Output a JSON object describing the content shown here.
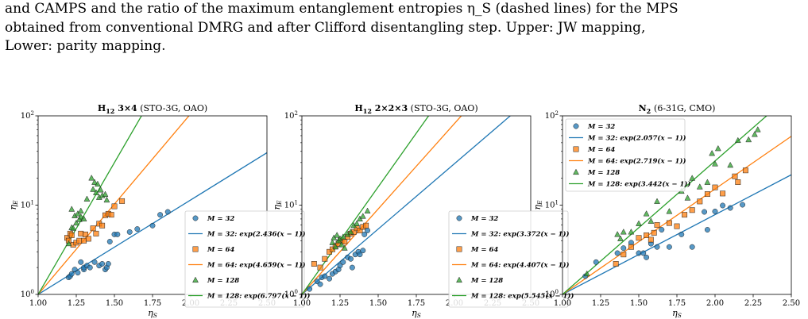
{
  "caption": {
    "line1": "and CAMPS and the ratio of the maximum entanglement entropies η_S (dashed lines) for the MPS",
    "line2": "obtained from conventional DMRG and after Clifford disentangling step. Upper: JW mapping,",
    "line3": "Lower: parity mapping."
  },
  "chart_data": [
    {
      "type": "scatter",
      "title": "H12 3×4 (STO-3G, OAO)",
      "xlabel": "η_S",
      "ylabel": "η_E",
      "xlim": [
        1.0,
        2.5
      ],
      "ylim": [
        1,
        100
      ],
      "yscale": "log",
      "xticks": [
        "1.00",
        "1.25",
        "1.50",
        "1.75",
        "2.00",
        "2.25",
        "2.50"
      ],
      "yticks": [
        "10^0",
        "10^1",
        "10^2"
      ],
      "legend_position": "lower-right",
      "legend": [
        "M = 32",
        "M = 32: exp(2.436(x − 1))",
        "M = 64",
        "M = 64: exp(4.659(x − 1))",
        "M = 128",
        "M = 128: exp(6.797(x − 1))"
      ],
      "series": [
        {
          "name": "M = 32",
          "marker": "circle",
          "color": "#1f77b4",
          "fit_k": 2.436,
          "points": [
            [
              1.2,
              1.55
            ],
            [
              1.21,
              1.6
            ],
            [
              1.22,
              1.7
            ],
            [
              1.24,
              1.9
            ],
            [
              1.26,
              1.75
            ],
            [
              1.28,
              2.3
            ],
            [
              1.3,
              1.9
            ],
            [
              1.3,
              2.0
            ],
            [
              1.32,
              2.1
            ],
            [
              1.34,
              2.0
            ],
            [
              1.37,
              2.3
            ],
            [
              1.4,
              2.1
            ],
            [
              1.42,
              2.2
            ],
            [
              1.44,
              1.9
            ],
            [
              1.45,
              2.0
            ],
            [
              1.46,
              2.2
            ],
            [
              1.47,
              3.9
            ],
            [
              1.5,
              4.7
            ],
            [
              1.52,
              4.7
            ],
            [
              1.6,
              5.0
            ],
            [
              1.65,
              5.4
            ],
            [
              1.75,
              5.9
            ],
            [
              1.8,
              7.8
            ],
            [
              1.85,
              8.4
            ]
          ]
        },
        {
          "name": "M = 64",
          "marker": "square",
          "color": "#ff7f0e",
          "fit_k": 4.659,
          "points": [
            [
              1.19,
              4.3
            ],
            [
              1.2,
              4.0
            ],
            [
              1.21,
              4.8
            ],
            [
              1.22,
              4.6
            ],
            [
              1.23,
              3.6
            ],
            [
              1.25,
              3.8
            ],
            [
              1.27,
              4.0
            ],
            [
              1.28,
              4.8
            ],
            [
              1.3,
              4.0
            ],
            [
              1.31,
              4.7
            ],
            [
              1.33,
              4.2
            ],
            [
              1.36,
              5.5
            ],
            [
              1.38,
              4.8
            ],
            [
              1.4,
              6.2
            ],
            [
              1.42,
              5.9
            ],
            [
              1.44,
              7.7
            ],
            [
              1.46,
              8.0
            ],
            [
              1.48,
              7.8
            ],
            [
              1.5,
              9.7
            ],
            [
              1.55,
              11.1
            ]
          ]
        },
        {
          "name": "M = 128",
          "marker": "triangle",
          "color": "#2ca02c",
          "fit_k": 6.797,
          "points": [
            [
              1.2,
              3.7
            ],
            [
              1.22,
              5.6
            ],
            [
              1.22,
              9.0
            ],
            [
              1.23,
              5.5
            ],
            [
              1.24,
              7.6
            ],
            [
              1.25,
              6.3
            ],
            [
              1.26,
              8.0
            ],
            [
              1.27,
              6.9
            ],
            [
              1.28,
              7.4
            ],
            [
              1.28,
              8.6
            ],
            [
              1.3,
              7.0
            ],
            [
              1.32,
              11.7
            ],
            [
              1.35,
              20.1
            ],
            [
              1.36,
              15.0
            ],
            [
              1.37,
              18.0
            ],
            [
              1.38,
              13.8
            ],
            [
              1.39,
              17.2
            ],
            [
              1.4,
              12.2
            ],
            [
              1.41,
              14.8
            ],
            [
              1.42,
              12.8
            ],
            [
              1.44,
              13.2
            ],
            [
              1.45,
              11.4
            ]
          ]
        }
      ]
    },
    {
      "type": "scatter",
      "title": "H12 2×2×3 (STO-3G, OAO)",
      "xlabel": "η_S",
      "ylabel": "η_E",
      "xlim": [
        1.0,
        2.5
      ],
      "ylim": [
        1,
        100
      ],
      "yscale": "log",
      "xticks": [
        "1.00",
        "1.25",
        "1.50",
        "1.75",
        "2.00",
        "2.25",
        "2.50"
      ],
      "yticks": [
        "10^0",
        "10^1",
        "10^2"
      ],
      "legend_position": "lower-right",
      "legend": [
        "M = 32",
        "M = 32: exp(3.372(x − 1))",
        "M = 64",
        "M = 64: exp(4.407(x − 1))",
        "M = 128",
        "M = 128: exp(5.545(x − 1))"
      ],
      "series": [
        {
          "name": "M = 32",
          "marker": "circle",
          "color": "#1f77b4",
          "fit_k": 3.372,
          "points": [
            [
              1.05,
              1.15
            ],
            [
              1.1,
              1.4
            ],
            [
              1.12,
              1.3
            ],
            [
              1.13,
              1.55
            ],
            [
              1.15,
              1.6
            ],
            [
              1.18,
              1.5
            ],
            [
              1.2,
              1.7
            ],
            [
              1.22,
              1.8
            ],
            [
              1.24,
              1.9
            ],
            [
              1.25,
              2.1
            ],
            [
              1.27,
              2.3
            ],
            [
              1.3,
              2.6
            ],
            [
              1.32,
              2.5
            ],
            [
              1.33,
              2.0
            ],
            [
              1.35,
              2.8
            ],
            [
              1.37,
              3.0
            ],
            [
              1.38,
              2.8
            ],
            [
              1.4,
              3.1
            ],
            [
              1.41,
              4.7
            ],
            [
              1.43,
              5.2
            ]
          ]
        },
        {
          "name": "M = 64",
          "marker": "square",
          "color": "#ff7f0e",
          "fit_k": 4.407,
          "points": [
            [
              1.08,
              2.2
            ],
            [
              1.12,
              2.0
            ],
            [
              1.15,
              2.5
            ],
            [
              1.18,
              3.0
            ],
            [
              1.2,
              3.2
            ],
            [
              1.22,
              3.5
            ],
            [
              1.24,
              3.7
            ],
            [
              1.26,
              4.0
            ],
            [
              1.28,
              3.9
            ],
            [
              1.3,
              4.4
            ],
            [
              1.32,
              4.8
            ],
            [
              1.34,
              5.0
            ],
            [
              1.36,
              5.5
            ],
            [
              1.38,
              5.2
            ],
            [
              1.4,
              5.7
            ],
            [
              1.42,
              5.9
            ]
          ]
        },
        {
          "name": "M = 128",
          "marker": "triangle",
          "color": "#2ca02c",
          "fit_k": 5.545,
          "points": [
            [
              1.2,
              3.8
            ],
            [
              1.21,
              4.3
            ],
            [
              1.22,
              3.4
            ],
            [
              1.23,
              4.6
            ],
            [
              1.24,
              4.0
            ],
            [
              1.25,
              4.2
            ],
            [
              1.26,
              3.6
            ],
            [
              1.27,
              4.4
            ],
            [
              1.28,
              3.3
            ],
            [
              1.3,
              4.7
            ],
            [
              1.32,
              5.0
            ],
            [
              1.34,
              5.9
            ],
            [
              1.36,
              6.2
            ],
            [
              1.38,
              7.0
            ],
            [
              1.4,
              7.5
            ],
            [
              1.43,
              8.6
            ]
          ]
        }
      ]
    },
    {
      "type": "scatter",
      "title": "N2 (6-31G, CMO)",
      "xlabel": "η_S",
      "ylabel": "η_E",
      "xlim": [
        1.0,
        2.5
      ],
      "ylim": [
        1,
        100
      ],
      "yscale": "log",
      "xticks": [
        "1.00",
        "1.25",
        "1.50",
        "1.75",
        "2.00",
        "2.25",
        "2.50"
      ],
      "yticks": [
        "10^0",
        "10^1",
        "10^2"
      ],
      "legend_position": "top-left",
      "legend": [
        "M = 32",
        "M = 32: exp(2.057(x − 1))",
        "M = 64",
        "M = 64: exp(2.719(x − 1))",
        "M = 128",
        "M = 128: exp(3.442(x − 1))"
      ],
      "series": [
        {
          "name": "M = 32",
          "marker": "circle",
          "color": "#1f77b4",
          "fit_k": 2.057,
          "points": [
            [
              1.15,
              1.6
            ],
            [
              1.22,
              2.3
            ],
            [
              1.36,
              2.9
            ],
            [
              1.4,
              3.3
            ],
            [
              1.45,
              3.8
            ],
            [
              1.5,
              2.9
            ],
            [
              1.53,
              2.9
            ],
            [
              1.55,
              2.6
            ],
            [
              1.58,
              3.7
            ],
            [
              1.62,
              3.4
            ],
            [
              1.65,
              5.3
            ],
            [
              1.7,
              3.4
            ],
            [
              1.78,
              4.7
            ],
            [
              1.85,
              3.4
            ],
            [
              1.93,
              8.4
            ],
            [
              1.95,
              5.3
            ],
            [
              2.0,
              8.5
            ],
            [
              2.05,
              9.9
            ],
            [
              2.1,
              9.3
            ],
            [
              2.18,
              10.1
            ]
          ]
        },
        {
          "name": "M = 64",
          "marker": "square",
          "color": "#ff7f0e",
          "fit_k": 2.719,
          "points": [
            [
              1.35,
              2.2
            ],
            [
              1.4,
              2.8
            ],
            [
              1.45,
              3.4
            ],
            [
              1.5,
              4.3
            ],
            [
              1.55,
              4.6
            ],
            [
              1.58,
              4.1
            ],
            [
              1.6,
              4.9
            ],
            [
              1.62,
              6.0
            ],
            [
              1.7,
              6.3
            ],
            [
              1.75,
              5.8
            ],
            [
              1.8,
              7.8
            ],
            [
              1.85,
              8.8
            ],
            [
              1.9,
              11.0
            ],
            [
              1.95,
              13.3
            ],
            [
              2.0,
              15.8
            ],
            [
              2.05,
              13.5
            ],
            [
              2.13,
              21.0
            ],
            [
              2.15,
              18.1
            ],
            [
              2.2,
              24.5
            ]
          ]
        },
        {
          "name": "M = 128",
          "marker": "triangle",
          "color": "#2ca02c",
          "fit_k": 3.442,
          "points": [
            [
              1.16,
              1.7
            ],
            [
              1.36,
              4.7
            ],
            [
              1.38,
              4.2
            ],
            [
              1.4,
              5.0
            ],
            [
              1.45,
              5.0
            ],
            [
              1.5,
              6.2
            ],
            [
              1.55,
              8.0
            ],
            [
              1.58,
              6.6
            ],
            [
              1.62,
              11.0
            ],
            [
              1.7,
              8.5
            ],
            [
              1.78,
              14.3
            ],
            [
              1.82,
              12.0
            ],
            [
              1.85,
              20.0
            ],
            [
              1.9,
              16.0
            ],
            [
              1.95,
              18.0
            ],
            [
              1.98,
              38.0
            ],
            [
              2.0,
              29.0
            ],
            [
              2.02,
              43.0
            ],
            [
              2.1,
              28.0
            ],
            [
              2.15,
              53.0
            ],
            [
              2.22,
              54.0
            ],
            [
              2.26,
              62.0
            ],
            [
              2.28,
              70.0
            ]
          ]
        }
      ]
    }
  ]
}
